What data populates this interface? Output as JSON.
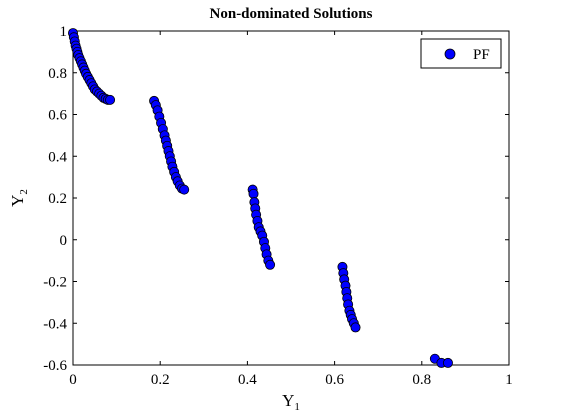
{
  "chart_data": {
    "type": "scatter",
    "title": "Non-dominated Solutions",
    "xlabel": {
      "base": "Y",
      "sub": "1"
    },
    "ylabel": {
      "base": "Y",
      "sub": "2"
    },
    "xlim": [
      0,
      1
    ],
    "ylim": [
      -0.6,
      1
    ],
    "xticks": [
      0,
      0.2,
      0.4,
      0.6,
      0.8,
      1
    ],
    "xtick_labels": [
      "0",
      "0.2",
      "0.4",
      "0.6",
      "0.8",
      "1"
    ],
    "yticks": [
      -0.6,
      -0.4,
      -0.2,
      0,
      0.2,
      0.4,
      0.6,
      0.8,
      1
    ],
    "ytick_labels": [
      "-0.6",
      "-0.4",
      "-0.2",
      "0",
      "0.2",
      "0.4",
      "0.6",
      "0.8",
      "1"
    ],
    "grid": false,
    "legend": {
      "position": "top-right"
    },
    "series": [
      {
        "name": "PF",
        "marker": "circle",
        "color": "#0000ff",
        "edge_color": "#000000",
        "x": [
          0.0,
          0.002,
          0.004,
          0.006,
          0.008,
          0.01,
          0.012,
          0.015,
          0.018,
          0.021,
          0.024,
          0.027,
          0.03,
          0.034,
          0.038,
          0.042,
          0.046,
          0.05,
          0.055,
          0.06,
          0.065,
          0.07,
          0.075,
          0.08,
          0.085,
          0.186,
          0.19,
          0.194,
          0.198,
          0.202,
          0.206,
          0.21,
          0.213,
          0.216,
          0.219,
          0.222,
          0.225,
          0.228,
          0.232,
          0.236,
          0.24,
          0.245,
          0.25,
          0.255,
          0.412,
          0.414,
          0.416,
          0.418,
          0.42,
          0.423,
          0.426,
          0.43,
          0.434,
          0.438,
          0.441,
          0.444,
          0.448,
          0.452,
          0.618,
          0.62,
          0.622,
          0.625,
          0.627,
          0.629,
          0.631,
          0.634,
          0.637,
          0.64,
          0.644,
          0.648,
          0.83,
          0.845,
          0.86
        ],
        "y": [
          0.99,
          0.97,
          0.95,
          0.93,
          0.915,
          0.9,
          0.885,
          0.87,
          0.855,
          0.84,
          0.825,
          0.81,
          0.795,
          0.78,
          0.765,
          0.75,
          0.735,
          0.72,
          0.71,
          0.7,
          0.69,
          0.68,
          0.675,
          0.67,
          0.67,
          0.665,
          0.645,
          0.62,
          0.59,
          0.56,
          0.53,
          0.5,
          0.475,
          0.45,
          0.425,
          0.4,
          0.375,
          0.35,
          0.325,
          0.3,
          0.28,
          0.26,
          0.245,
          0.24,
          0.24,
          0.22,
          0.18,
          0.15,
          0.12,
          0.09,
          0.06,
          0.04,
          0.02,
          -0.01,
          -0.04,
          -0.07,
          -0.1,
          -0.12,
          -0.13,
          -0.16,
          -0.19,
          -0.22,
          -0.25,
          -0.28,
          -0.31,
          -0.34,
          -0.36,
          -0.38,
          -0.4,
          -0.42,
          -0.57,
          -0.59,
          -0.59
        ]
      }
    ]
  }
}
